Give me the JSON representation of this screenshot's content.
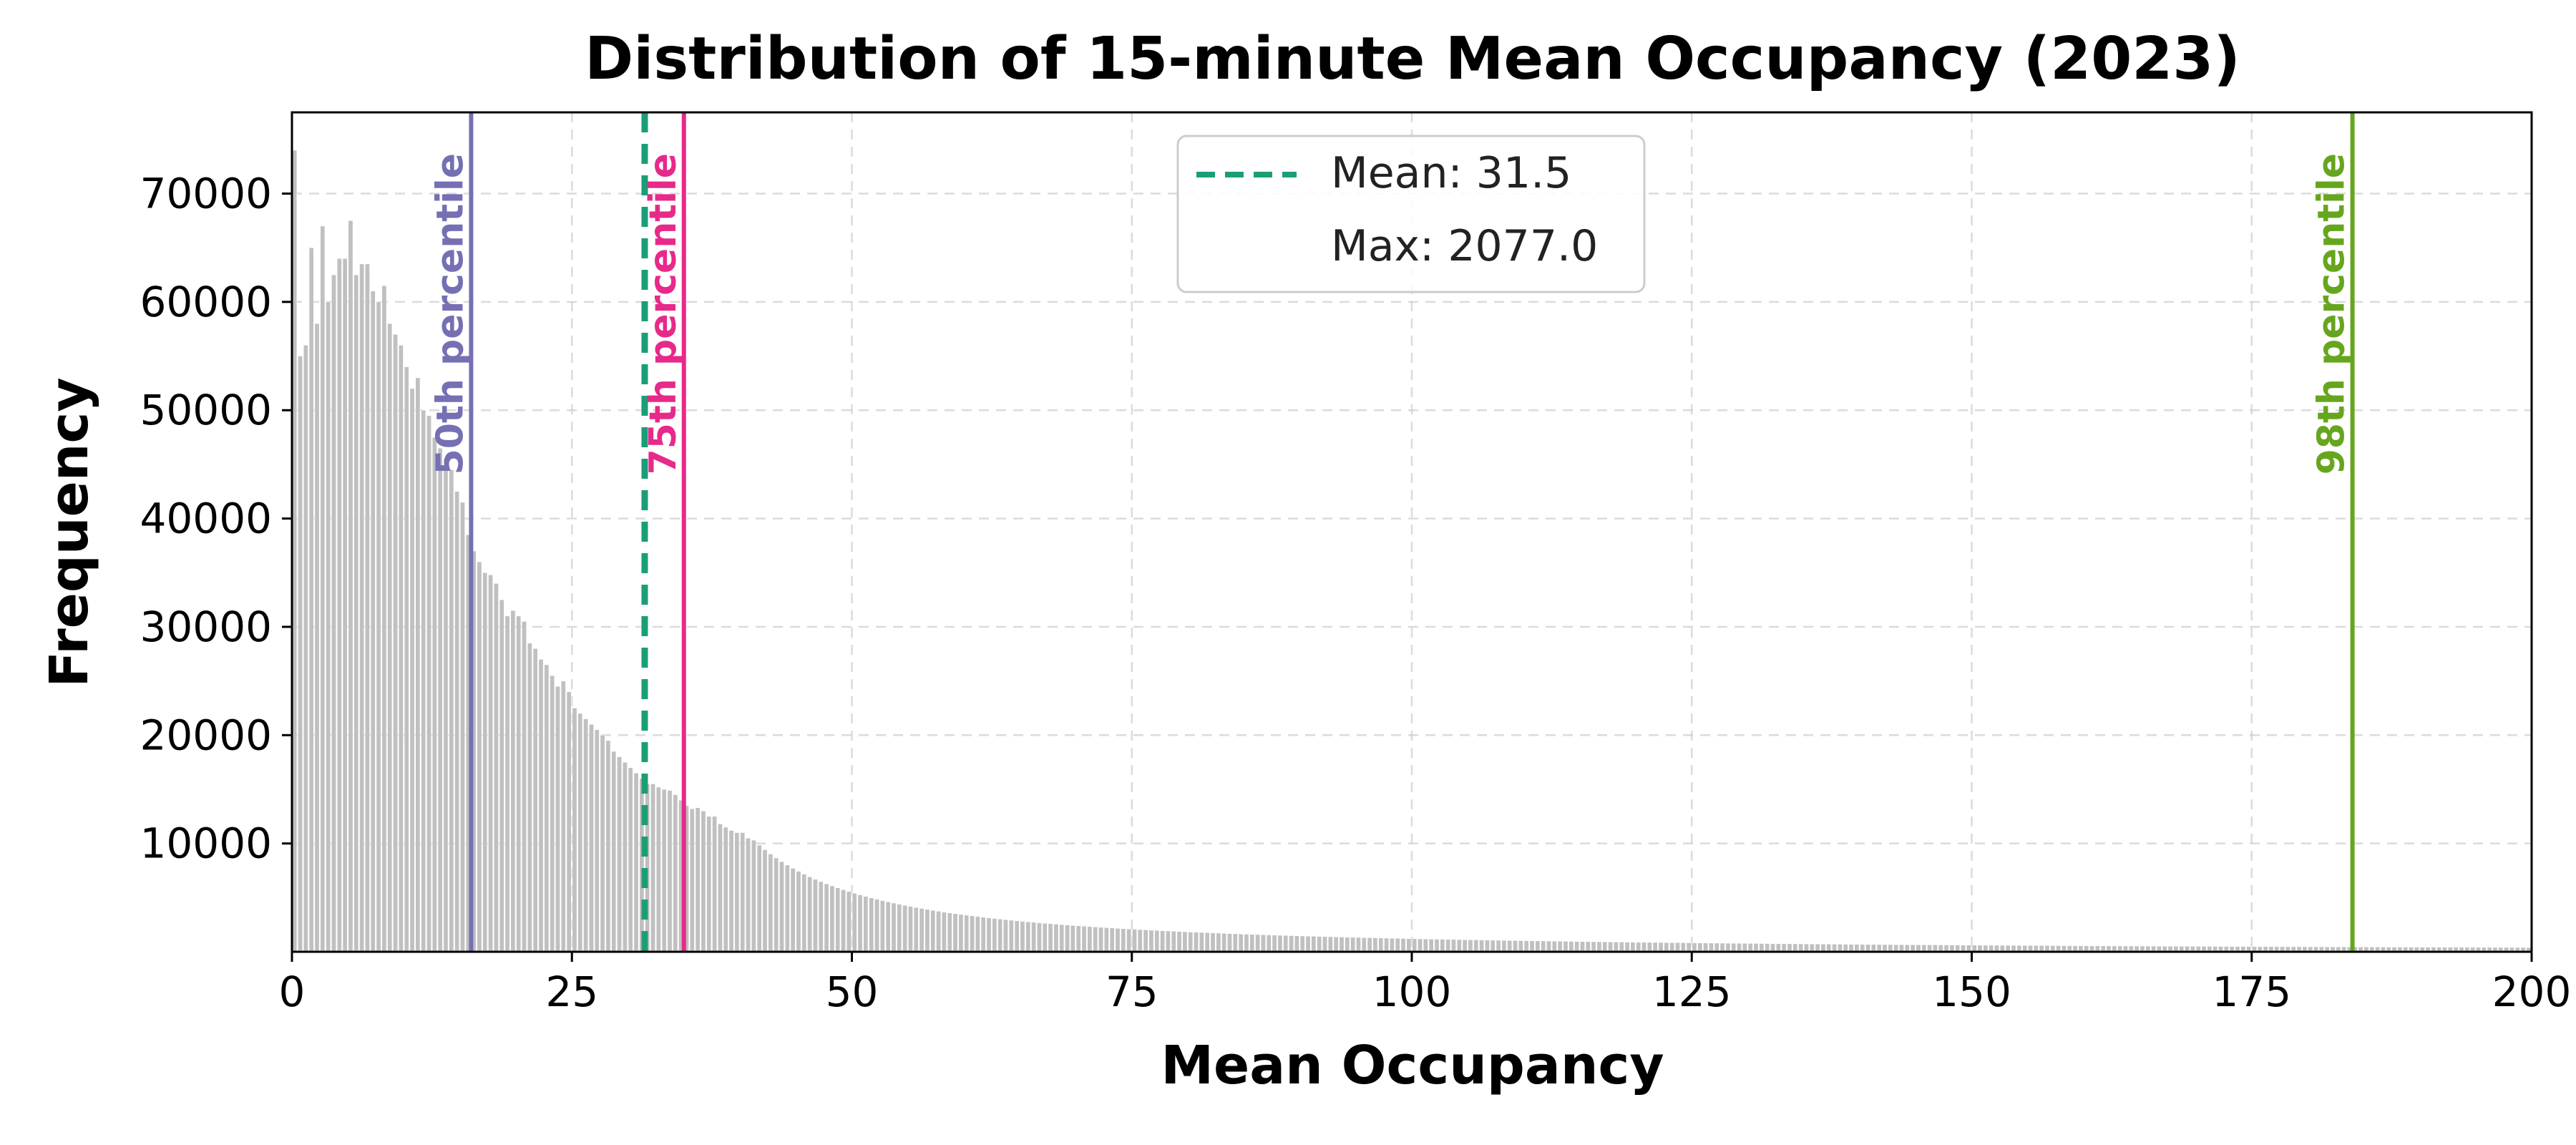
{
  "chart_data": {
    "type": "bar",
    "title": "Distribution of 15-minute Mean Occupancy (2023)",
    "xlabel": "Mean Occupancy",
    "ylabel": "Frequency",
    "xlim": [
      0,
      200
    ],
    "ylim": [
      0,
      77500
    ],
    "x_ticks": [
      0,
      25,
      50,
      75,
      100,
      125,
      150,
      175,
      200
    ],
    "y_ticks": [
      10000,
      20000,
      30000,
      40000,
      50000,
      60000,
      70000
    ],
    "grid": true,
    "bar_color": "#c0c0c0",
    "bin_width": 0.5,
    "histogram_bins": [
      [
        0.0,
        74000
      ],
      [
        0.5,
        55000
      ],
      [
        1.0,
        56000
      ],
      [
        1.5,
        65000
      ],
      [
        2.0,
        58000
      ],
      [
        2.5,
        67000
      ],
      [
        3.0,
        60000
      ],
      [
        3.5,
        62500
      ],
      [
        4.0,
        64000
      ],
      [
        4.5,
        64000
      ],
      [
        5.0,
        67500
      ],
      [
        5.5,
        62500
      ],
      [
        6.0,
        63500
      ],
      [
        6.5,
        63500
      ],
      [
        7.0,
        61000
      ],
      [
        7.5,
        60000
      ],
      [
        8.0,
        61500
      ],
      [
        8.5,
        58000
      ],
      [
        9.0,
        57000
      ],
      [
        9.5,
        56000
      ],
      [
        10.0,
        54000
      ],
      [
        10.5,
        52000
      ],
      [
        11.0,
        53000
      ],
      [
        11.5,
        50000
      ],
      [
        12.0,
        49500
      ],
      [
        12.5,
        47500
      ],
      [
        13.0,
        46500
      ],
      [
        13.5,
        45500
      ],
      [
        14.0,
        44500
      ],
      [
        14.5,
        42500
      ],
      [
        15.0,
        41500
      ],
      [
        15.5,
        38500
      ],
      [
        16.0,
        37000
      ],
      [
        16.5,
        36000
      ],
      [
        17.0,
        35000
      ],
      [
        17.5,
        34800
      ],
      [
        18.0,
        34000
      ],
      [
        18.5,
        32500
      ],
      [
        19.0,
        31000
      ],
      [
        19.5,
        31500
      ],
      [
        20.0,
        31000
      ],
      [
        20.5,
        30500
      ],
      [
        21.0,
        28500
      ],
      [
        21.5,
        28000
      ],
      [
        22.0,
        27000
      ],
      [
        22.5,
        26500
      ],
      [
        23.0,
        25500
      ],
      [
        23.5,
        24500
      ],
      [
        24.0,
        25000
      ],
      [
        24.5,
        24000
      ],
      [
        25.0,
        22500
      ],
      [
        25.5,
        22000
      ],
      [
        26.0,
        21500
      ],
      [
        26.5,
        21000
      ],
      [
        27.0,
        20500
      ],
      [
        27.5,
        20000
      ],
      [
        28.0,
        19500
      ],
      [
        28.5,
        18500
      ],
      [
        29.0,
        18000
      ],
      [
        29.5,
        17500
      ],
      [
        30.0,
        17000
      ],
      [
        30.5,
        16500
      ],
      [
        31.0,
        16000
      ],
      [
        31.5,
        15500
      ],
      [
        32.0,
        15500
      ],
      [
        32.5,
        15200
      ],
      [
        33.0,
        15000
      ],
      [
        33.5,
        14900
      ],
      [
        34.0,
        14500
      ],
      [
        34.5,
        14000
      ],
      [
        35.0,
        13500
      ],
      [
        35.5,
        13200
      ],
      [
        36.0,
        13300
      ],
      [
        36.5,
        13000
      ],
      [
        37.0,
        12500
      ],
      [
        37.5,
        12500
      ],
      [
        38.0,
        11800
      ],
      [
        38.5,
        11500
      ],
      [
        39.0,
        11200
      ],
      [
        39.5,
        11000
      ],
      [
        40.0,
        11000
      ],
      [
        40.5,
        10500
      ]
    ],
    "tail_decay": {
      "from_x": 41,
      "to_x": 200,
      "start_value": 10300,
      "description": "long right tail decaying toward ~300 at 200"
    },
    "reference_lines": [
      {
        "name": "50th percentile",
        "x": 16.0,
        "color": "#7570b3",
        "style": "solid"
      },
      {
        "name": "Mean: 31.5",
        "x": 31.5,
        "color": "#1b9e77",
        "style": "dashed"
      },
      {
        "name": "75th percentile",
        "x": 35.0,
        "color": "#e7298a",
        "style": "solid"
      },
      {
        "name": "98th percentile",
        "x": 184.0,
        "color": "#66a61e",
        "style": "solid"
      }
    ],
    "annotations": [
      {
        "text": "50th percentile",
        "x": 16.0,
        "color": "#7570b3"
      },
      {
        "text": "75th percentile",
        "x": 35.0,
        "color": "#e7298a"
      },
      {
        "text": "98th percentile",
        "x": 184.0,
        "color": "#66a61e"
      }
    ],
    "legend": {
      "placement": "upper-center",
      "entries": [
        {
          "label": "Mean: 31.5",
          "color": "#1b9e77",
          "style": "dashed"
        },
        {
          "label": "Max: 2077.0",
          "color": "none",
          "style": "none"
        }
      ]
    }
  }
}
